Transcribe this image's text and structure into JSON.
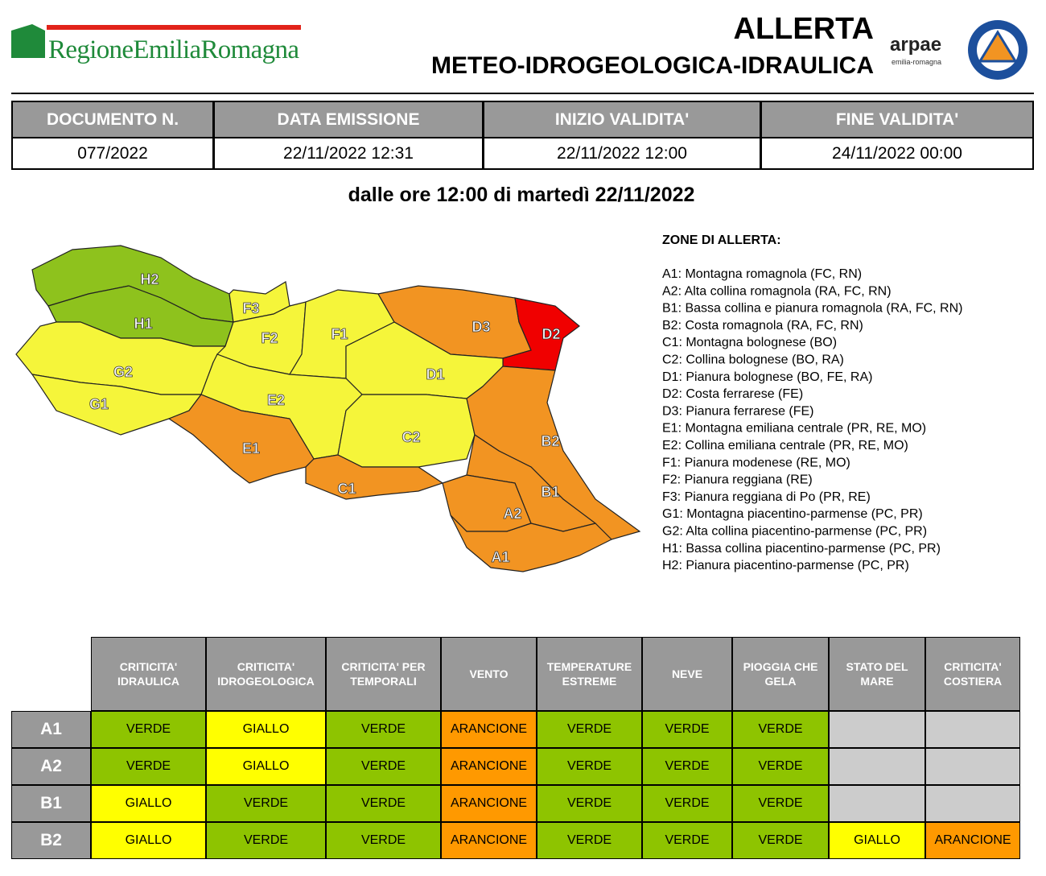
{
  "header": {
    "logo": "RegioneEmiliaRomagna",
    "title": "ALLERTA",
    "subtitle": "METEO-IDROGEOLOGICA-IDRAULICA",
    "arpae": "arpae",
    "arpae_sub": "emilia-romagna"
  },
  "doc_table": {
    "headers": [
      "DOCUMENTO N.",
      "DATA EMISSIONE",
      "INIZIO VALIDITA'",
      "FINE VALIDITA'"
    ],
    "values": [
      "077/2022",
      "22/11/2022 12:31",
      "22/11/2022 12:00",
      "24/11/2022 00:00"
    ]
  },
  "validity": "dalle ore 12:00 di martedì 22/11/2022",
  "map": {
    "zones": [
      {
        "label": "H2",
        "color": "#8ec21d"
      },
      {
        "label": "H1",
        "color": "#8ec21d"
      },
      {
        "label": "G2",
        "color": "#f5f53a"
      },
      {
        "label": "G1",
        "color": "#f5f53a"
      },
      {
        "label": "F3",
        "color": "#f5f53a"
      },
      {
        "label": "F2",
        "color": "#f5f53a"
      },
      {
        "label": "F1",
        "color": "#f5f53a"
      },
      {
        "label": "D3",
        "color": "#f29422"
      },
      {
        "label": "D2",
        "color": "#f00000"
      },
      {
        "label": "D1",
        "color": "#f5f53a"
      },
      {
        "label": "E2",
        "color": "#f5f53a"
      },
      {
        "label": "E1",
        "color": "#f29422"
      },
      {
        "label": "C2",
        "color": "#f5f53a"
      },
      {
        "label": "C1",
        "color": "#f29422"
      },
      {
        "label": "B2",
        "color": "#f29422"
      },
      {
        "label": "B1",
        "color": "#f29422"
      },
      {
        "label": "A2",
        "color": "#f29422"
      },
      {
        "label": "A1",
        "color": "#f29422"
      }
    ]
  },
  "legend": {
    "title": "ZONE DI ALLERTA:",
    "items": [
      "A1: Montagna romagnola (FC, RN)",
      "A2: Alta collina romagnola (RA, FC, RN)",
      "B1: Bassa collina e pianura romagnola (RA, FC, RN)",
      "B2: Costa romagnola (RA, FC, RN)",
      "C1: Montagna bolognese (BO)",
      "C2: Collina bolognese (BO, RA)",
      "D1: Pianura bolognese (BO, FE, RA)",
      "D2: Costa ferrarese (FE)",
      "D3: Pianura ferrarese (FE)",
      "E1: Montagna emiliana centrale (PR, RE, MO)",
      "E2: Collina emiliana centrale (PR, RE, MO)",
      "F1: Pianura modenese (RE, MO)",
      "F2: Pianura reggiana (RE)",
      "F3: Pianura reggiana di Po (PR, RE)",
      "G1: Montagna piacentino-parmense (PC, PR)",
      "G2: Alta collina piacentino-parmense (PC, PR)",
      "H1: Bassa collina piacentino-parmense (PC, PR)",
      "H2: Pianura piacentino-parmense (PC, PR)"
    ]
  },
  "alert_table": {
    "columns": [
      "CRITICITA' IDRAULICA",
      "CRITICITA' IDROGEOLOGICA",
      "CRITICITA' PER TEMPORALI",
      "VENTO",
      "TEMPERATURE ESTREME",
      "NEVE",
      "PIOGGIA CHE GELA",
      "STATO DEL MARE",
      "CRITICITA' COSTIERA"
    ],
    "rows": [
      {
        "zone": "A1",
        "cells": [
          "VERDE",
          "GIALLO",
          "VERDE",
          "ARANCIONE",
          "VERDE",
          "VERDE",
          "VERDE",
          null,
          null
        ]
      },
      {
        "zone": "A2",
        "cells": [
          "VERDE",
          "GIALLO",
          "VERDE",
          "ARANCIONE",
          "VERDE",
          "VERDE",
          "VERDE",
          null,
          null
        ]
      },
      {
        "zone": "B1",
        "cells": [
          "GIALLO",
          "VERDE",
          "VERDE",
          "ARANCIONE",
          "VERDE",
          "VERDE",
          "VERDE",
          null,
          null
        ]
      },
      {
        "zone": "B2",
        "cells": [
          "GIALLO",
          "VERDE",
          "VERDE",
          "ARANCIONE",
          "VERDE",
          "VERDE",
          "VERDE",
          "GIALLO",
          "ARANCIONE"
        ]
      }
    ],
    "level_colors": {
      "VERDE": "#8ec400",
      "GIALLO": "#ffff00",
      "ARANCIONE": "#ff9900"
    },
    "empty_color": "#cccccc"
  }
}
